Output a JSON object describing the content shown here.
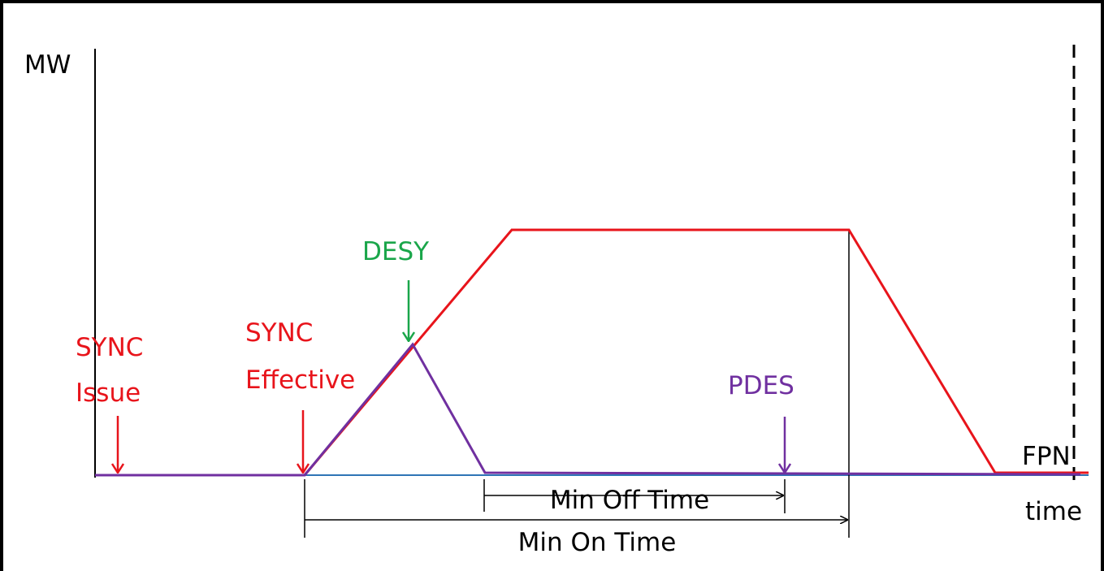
{
  "axis": {
    "y_label": "MW",
    "x_label": "time"
  },
  "labels": {
    "fpn": "FPN",
    "sync_issue": [
      "SYNC",
      "Issue"
    ],
    "sync_effective": [
      "SYNC",
      "Effective"
    ],
    "desy": "DESY",
    "pdes": "PDES",
    "min_off_time": "Min Off Time",
    "min_on_time": "Min On Time"
  }
}
